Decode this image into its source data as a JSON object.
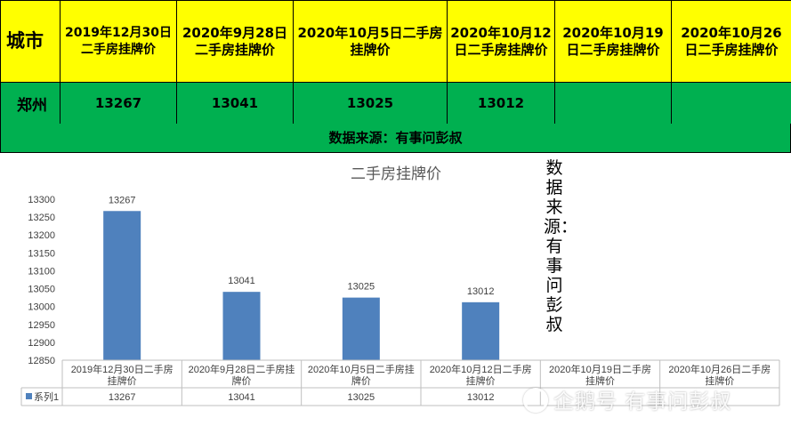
{
  "table": {
    "city_header": "城市",
    "headers": [
      "2019年12月30日二手房挂牌价",
      "2020年9月28日二手房挂牌价",
      "2020年10月5日二手房挂牌价",
      "2020年10月12日二手房挂牌价",
      "2020年10月19日二手房挂牌价",
      "2020年10月26日二手房挂牌价"
    ],
    "row": {
      "city": "郑州",
      "values": [
        "13267",
        "13041",
        "13025",
        "13012",
        "",
        ""
      ]
    },
    "source": "数据来源：有事问彭叔"
  },
  "vertical_note": "数据来源：有事问彭叔",
  "watermark": "企鹅号 有事问彭叔",
  "colors": {
    "header_bg": "#ffff00",
    "row_bg": "#00b050",
    "bar": "#4f81bd"
  },
  "chart_data": {
    "type": "bar",
    "title": "二手房挂牌价",
    "categories": [
      "2019年12月30日二手房挂牌价",
      "2020年9月28日二手房挂牌价",
      "2020年10月5日二手房挂牌价",
      "2020年10月12日二手房挂牌价",
      "2020年10月19日二手房挂牌价",
      "2020年10月26日二手房挂牌价"
    ],
    "category_lines": [
      [
        "2019年12月30日二手房",
        "挂牌价"
      ],
      [
        "2020年9月28日二手房挂",
        "牌价"
      ],
      [
        "2020年10月5日二手房挂",
        "牌价"
      ],
      [
        "2020年10月12日二手房",
        "挂牌价"
      ],
      [
        "2020年10月19日二手房",
        "挂牌价"
      ],
      [
        "2020年10月26日二手房",
        "挂牌价"
      ]
    ],
    "series": [
      {
        "name": "系列1",
        "values": [
          13267,
          13041,
          13025,
          13012,
          null,
          null
        ]
      }
    ],
    "data_table": [
      "13267",
      "13041",
      "13025",
      "13012",
      "",
      ""
    ],
    "ylim": [
      12850,
      13300
    ],
    "yticks": [
      12850,
      12900,
      12950,
      13000,
      13050,
      13100,
      13150,
      13200,
      13250,
      13300
    ],
    "data_labels": true,
    "legend": "data-table-left",
    "grid": false
  }
}
